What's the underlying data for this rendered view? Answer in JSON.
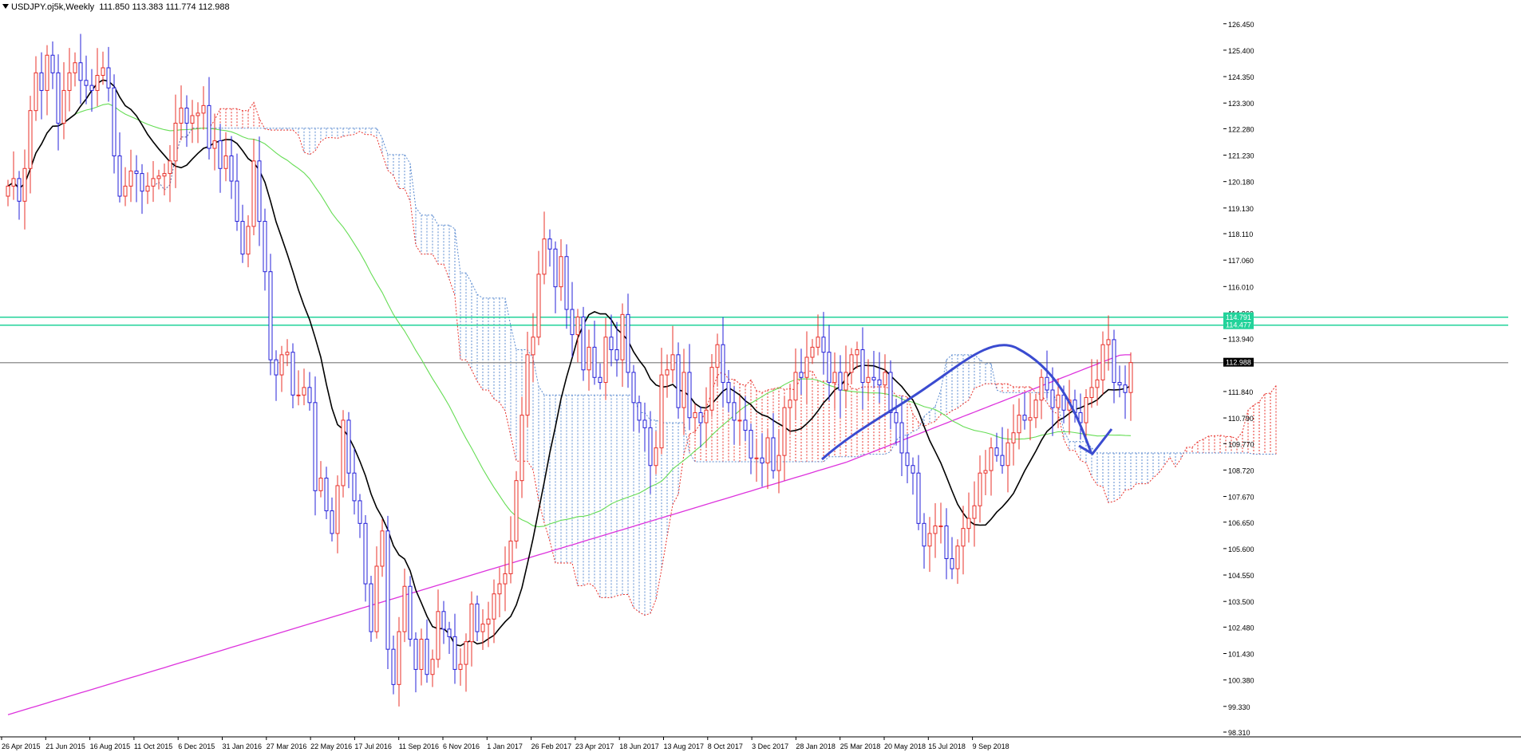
{
  "header": {
    "symbol": "USDJPY.oj5k",
    "timeframe": "Weekly",
    "ohlc": "111.850 113.383 111.774 112.988"
  },
  "chart_data": {
    "type": "candlestick",
    "symbol": "USDJPY.oj5k",
    "timeframe": "Weekly",
    "y_range": [
      98.31,
      126.95
    ],
    "y_ticks": [
      "126.450",
      "125.400",
      "124.350",
      "123.300",
      "122.280",
      "121.230",
      "120.180",
      "119.130",
      "118.110",
      "117.060",
      "116.010",
      "114.960",
      "113.940",
      "112.988",
      "111.840",
      "110.790",
      "109.770",
      "108.720",
      "107.670",
      "106.650",
      "105.600",
      "104.550",
      "103.500",
      "102.480",
      "101.430",
      "100.380",
      "99.330",
      "98.310"
    ],
    "x_ticks": [
      "26 Apr 2015",
      "21 Jun 2015",
      "16 Aug 2015",
      "11 Oct 2015",
      "6 Dec 2015",
      "31 Jan 2016",
      "27 Mar 2016",
      "22 May 2016",
      "17 Jul 2016",
      "11 Sep 2016",
      "6 Nov 2016",
      "1 Jan 2017",
      "26 Feb 2017",
      "23 Apr 2017",
      "18 Jun 2017",
      "13 Aug 2017",
      "8 Oct 2017",
      "3 Dec 2017",
      "28 Jan 2018",
      "25 Mar 2018",
      "20 May 2018",
      "15 Jul 2018",
      "9 Sep 2018"
    ],
    "horizontal_lines": [
      {
        "label": "114.791",
        "value": 114.791,
        "color": "#22d39a"
      },
      {
        "label": "114.477",
        "value": 114.477,
        "color": "#22d39a"
      },
      {
        "label": "112.988",
        "value": 112.988,
        "color": "#9a9a9a"
      }
    ],
    "colors": {
      "bull": "#e8302a",
      "bear": "#2420d8",
      "ma_black": "#000000",
      "ma_green": "#66dd55",
      "ma_magenta": "#dd33dd",
      "cloud_bull": "#e8302a",
      "cloud_bear": "#5b8bd0",
      "drawing": "#3a4bd0",
      "price_tag_bg": "#000000",
      "level_tag_bg": "#22d39a"
    },
    "candles_close": [
      120.0,
      120.3,
      119.4,
      120.7,
      123.0,
      124.5,
      123.8,
      125.2,
      124.5,
      122.5,
      123.8,
      124.5,
      124.9,
      124.2,
      124.0,
      123.8,
      124.4,
      124.7,
      123.9,
      121.2,
      119.6,
      120.0,
      120.6,
      120.5,
      119.8,
      120.0,
      120.3,
      120.4,
      120.5,
      121.0,
      122.5,
      123.1,
      122.5,
      122.8,
      122.9,
      123.2,
      121.5,
      121.8,
      120.7,
      121.2,
      120.2,
      118.6,
      117.3,
      118.4,
      121.0,
      118.6,
      116.6,
      113.1,
      112.5,
      113.3,
      113.4,
      111.7,
      111.7,
      112.0,
      111.4,
      107.9,
      108.4,
      107.1,
      106.2,
      108.1,
      110.7,
      108.6,
      107.5,
      106.6,
      104.2,
      102.3,
      104.9,
      106.3,
      101.6,
      100.2,
      102.3,
      104.1,
      102.0,
      100.8,
      102.0,
      100.6,
      101.2,
      103.1,
      102.4,
      102.1,
      100.8,
      101.0,
      101.9,
      103.4,
      102.3,
      102.6,
      102.8,
      103.8,
      104.2,
      104.6,
      105.9,
      108.3,
      110.9,
      113.3,
      114.0,
      116.5,
      117.9,
      117.5,
      116.0,
      117.2,
      115.1,
      114.1,
      114.8,
      112.7,
      113.6,
      112.4,
      112.2,
      114.0,
      113.5,
      113.1,
      114.9,
      112.6,
      111.4,
      110.7,
      110.4,
      108.9,
      109.6,
      112.5,
      112.7,
      113.3,
      111.2,
      112.6,
      110.8,
      111.0,
      110.6,
      111.1,
      112.8,
      113.7,
      112.2,
      111.4,
      110.7,
      110.7,
      110.3,
      109.2,
      109.2,
      109.0,
      110.0,
      108.7,
      109.3,
      111.2,
      111.5,
      112.6,
      112.4,
      113.2,
      113.6,
      114.0,
      113.4,
      112.2,
      112.6,
      111.9,
      112.6,
      113.3,
      113.5,
      112.2,
      112.4,
      112.3,
      112.1,
      112.6,
      111.0,
      110.6,
      109.4,
      108.9,
      108.6,
      106.6,
      105.7,
      106.2,
      106.5,
      106.5,
      105.2,
      104.8,
      105.7,
      106.4,
      106.8,
      107.3,
      108.6,
      108.7,
      109.6,
      109.3,
      108.9,
      109.8,
      110.2,
      110.9,
      110.7,
      110.8,
      111.5,
      112.4,
      111.9,
      111.2,
      111.7,
      111.1,
      111.5,
      111.0,
      110.6,
      111.6,
      112.0,
      112.3,
      113.7,
      113.9,
      112.2,
      112.1,
      111.8,
      112.988
    ]
  }
}
